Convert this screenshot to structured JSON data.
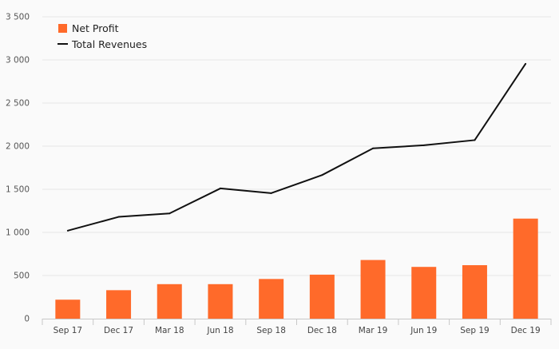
{
  "chart_data": {
    "type": "bar",
    "categories": [
      "Sep 17",
      "Dec 17",
      "Mar 18",
      "Jun 18",
      "Sep 18",
      "Dec 18",
      "Mar 19",
      "Jun 19",
      "Sep 19",
      "Dec 19"
    ],
    "series": [
      {
        "name": "Net Profit",
        "type": "bar",
        "color": "#ff6a2a",
        "values": [
          220,
          330,
          400,
          400,
          460,
          510,
          680,
          600,
          620,
          1160
        ]
      },
      {
        "name": "Total Revenues",
        "type": "line",
        "color": "#111111",
        "values": [
          1020,
          1180,
          1220,
          1510,
          1455,
          1665,
          1975,
          2010,
          2070,
          2955
        ]
      }
    ],
    "y_ticks": [
      "0",
      "500",
      "1 000",
      "1 500",
      "2 000",
      "2 500",
      "3 000",
      "3 500"
    ],
    "ylim": [
      0,
      3500
    ],
    "grid": true,
    "legend_position": "top-left",
    "title": "",
    "xlabel": "",
    "ylabel": ""
  }
}
